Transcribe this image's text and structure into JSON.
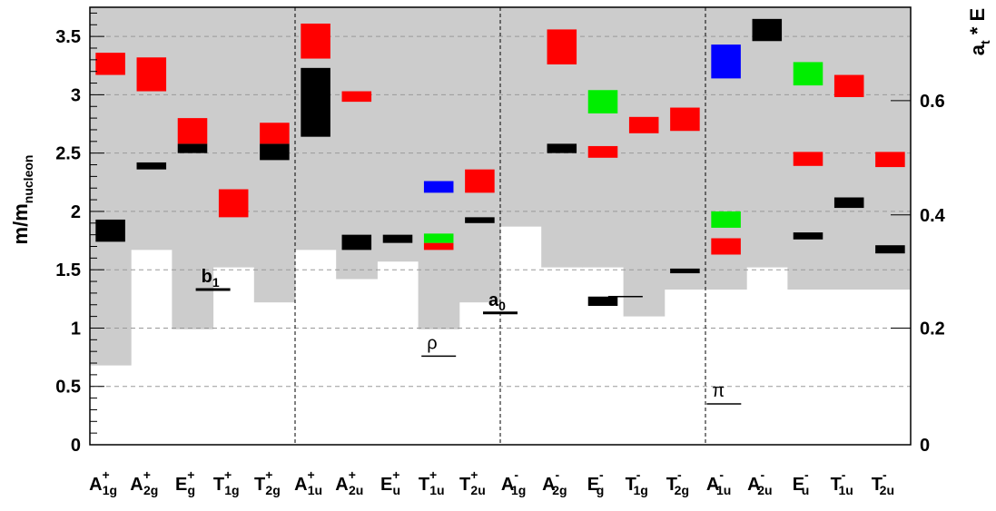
{
  "chart_data": {
    "type": "bar",
    "ylabel": {
      "main": "m/m",
      "sub": "nucleon"
    },
    "y2label": {
      "main": "a",
      "sub": "t",
      "suffix": " * E"
    },
    "ylim": [
      0,
      3.75
    ],
    "yticks": [
      "0",
      "0.5",
      "1",
      "1.5",
      "2",
      "2.5",
      "3",
      "3.5"
    ],
    "y2ticks": [
      {
        "label": "0",
        "value": 0
      },
      {
        "label": "0.2",
        "value": 1.0
      },
      {
        "label": "0.4",
        "value": 1.97
      },
      {
        "label": "0.6",
        "value": 2.95
      }
    ],
    "grid_y": [
      0.5,
      1.0,
      1.5,
      2.0,
      2.5,
      3.0,
      3.5
    ],
    "categories": [
      {
        "base": "A",
        "sup": "+",
        "sub": "1g"
      },
      {
        "base": "A",
        "sup": "+",
        "sub": "2g"
      },
      {
        "base": "E",
        "sup": "+",
        "sub": "g"
      },
      {
        "base": "T",
        "sup": "+",
        "sub": "1g"
      },
      {
        "base": "T",
        "sup": "+",
        "sub": "2g"
      },
      {
        "base": "A",
        "sup": "+",
        "sub": "1u"
      },
      {
        "base": "A",
        "sup": "+",
        "sub": "2u"
      },
      {
        "base": "E",
        "sup": "+",
        "sub": "u"
      },
      {
        "base": "T",
        "sup": "+",
        "sub": "1u"
      },
      {
        "base": "T",
        "sup": "+",
        "sub": "2u"
      },
      {
        "base": "A",
        "sup": "-",
        "sub": "1g"
      },
      {
        "base": "A",
        "sup": "-",
        "sub": "2g"
      },
      {
        "base": "E",
        "sup": "-",
        "sub": "g"
      },
      {
        "base": "T",
        "sup": "-",
        "sub": "1g"
      },
      {
        "base": "T",
        "sup": "-",
        "sub": "2g"
      },
      {
        "base": "A",
        "sup": "-",
        "sub": "1u"
      },
      {
        "base": "A",
        "sup": "-",
        "sub": "2u"
      },
      {
        "base": "E",
        "sup": "-",
        "sub": "u"
      },
      {
        "base": "T",
        "sup": "-",
        "sub": "1u"
      },
      {
        "base": "T",
        "sup": "-",
        "sub": "2u"
      }
    ],
    "thresholds": [
      0.68,
      1.67,
      0.99,
      1.52,
      1.22,
      1.67,
      1.42,
      1.57,
      0.99,
      1.22,
      1.87,
      1.52,
      1.52,
      1.1,
      1.33,
      1.33,
      1.52,
      1.33,
      1.33,
      1.33
    ],
    "colors": {
      "black": "#000000",
      "red": "#ff0000",
      "green": "#00ee00",
      "blue": "#0000ff",
      "shade": "#cccccc",
      "grid": "#999999"
    },
    "states": [
      {
        "cat": 0,
        "color": "black",
        "low": 1.74,
        "high": 1.93
      },
      {
        "cat": 0,
        "color": "red",
        "low": 3.17,
        "high": 3.36
      },
      {
        "cat": 1,
        "color": "black",
        "low": 2.36,
        "high": 2.42
      },
      {
        "cat": 1,
        "color": "red",
        "low": 3.03,
        "high": 3.32
      },
      {
        "cat": 2,
        "color": "black",
        "low": 2.5,
        "high": 2.58
      },
      {
        "cat": 2,
        "color": "red",
        "low": 2.58,
        "high": 2.8
      },
      {
        "cat": 3,
        "color": "red",
        "low": 1.95,
        "high": 2.19
      },
      {
        "cat": 4,
        "color": "black",
        "low": 2.44,
        "high": 2.58
      },
      {
        "cat": 4,
        "color": "red",
        "low": 2.58,
        "high": 2.76
      },
      {
        "cat": 5,
        "color": "black",
        "low": 2.64,
        "high": 3.23
      },
      {
        "cat": 5,
        "color": "red",
        "low": 3.31,
        "high": 3.61
      },
      {
        "cat": 6,
        "color": "black",
        "low": 1.67,
        "high": 1.8
      },
      {
        "cat": 6,
        "color": "red",
        "low": 2.94,
        "high": 3.03
      },
      {
        "cat": 7,
        "color": "black",
        "low": 1.73,
        "high": 1.8
      },
      {
        "cat": 8,
        "color": "red",
        "low": 1.67,
        "high": 1.73
      },
      {
        "cat": 8,
        "color": "green",
        "low": 1.73,
        "high": 1.81
      },
      {
        "cat": 8,
        "color": "blue",
        "low": 2.16,
        "high": 2.26
      },
      {
        "cat": 9,
        "color": "black",
        "low": 1.9,
        "high": 1.95
      },
      {
        "cat": 9,
        "color": "red",
        "low": 2.16,
        "high": 2.36
      },
      {
        "cat": 11,
        "color": "black",
        "low": 2.5,
        "high": 2.58
      },
      {
        "cat": 11,
        "color": "red",
        "low": 3.26,
        "high": 3.56
      },
      {
        "cat": 12,
        "color": "black",
        "low": 1.19,
        "high": 1.27
      },
      {
        "cat": 12,
        "color": "red",
        "low": 2.46,
        "high": 2.56
      },
      {
        "cat": 12,
        "color": "green",
        "low": 2.84,
        "high": 3.04
      },
      {
        "cat": 13,
        "color": "red",
        "low": 2.67,
        "high": 2.81
      },
      {
        "cat": 14,
        "color": "black",
        "low": 1.47,
        "high": 1.51
      },
      {
        "cat": 14,
        "color": "red",
        "low": 2.69,
        "high": 2.89
      },
      {
        "cat": 15,
        "color": "red",
        "low": 1.63,
        "high": 1.77
      },
      {
        "cat": 15,
        "color": "green",
        "low": 1.86,
        "high": 2.0
      },
      {
        "cat": 15,
        "color": "blue",
        "low": 3.14,
        "high": 3.43
      },
      {
        "cat": 16,
        "color": "black",
        "low": 3.46,
        "high": 3.65
      },
      {
        "cat": 17,
        "color": "black",
        "low": 1.76,
        "high": 1.82
      },
      {
        "cat": 17,
        "color": "red",
        "low": 2.39,
        "high": 2.51
      },
      {
        "cat": 17,
        "color": "green",
        "low": 3.08,
        "high": 3.28
      },
      {
        "cat": 18,
        "color": "black",
        "low": 2.03,
        "high": 2.12
      },
      {
        "cat": 18,
        "color": "red",
        "low": 2.98,
        "high": 3.17
      },
      {
        "cat": 19,
        "color": "black",
        "low": 1.64,
        "high": 1.71
      },
      {
        "cat": 19,
        "color": "red",
        "low": 2.38,
        "high": 2.51
      }
    ],
    "reference_lines": [
      {
        "cat_pos": 3.0,
        "y": 1.33,
        "label": "b",
        "label_sub": "1",
        "bold": true
      },
      {
        "cat_pos": 8.5,
        "y": 0.76,
        "label": "ρ",
        "label_sub": "",
        "bold": false
      },
      {
        "cat_pos": 10.0,
        "y": 1.13,
        "label": "a",
        "label_sub": "0",
        "bold": true
      },
      {
        "cat_pos": 13.05,
        "y": 1.27,
        "label": "",
        "label_sub": "",
        "bold": false
      },
      {
        "cat_pos": 15.45,
        "y": 0.35,
        "label": "π",
        "label_sub": "",
        "bold": false
      }
    ],
    "sector_dividers_after": [
      4,
      9,
      14
    ]
  }
}
